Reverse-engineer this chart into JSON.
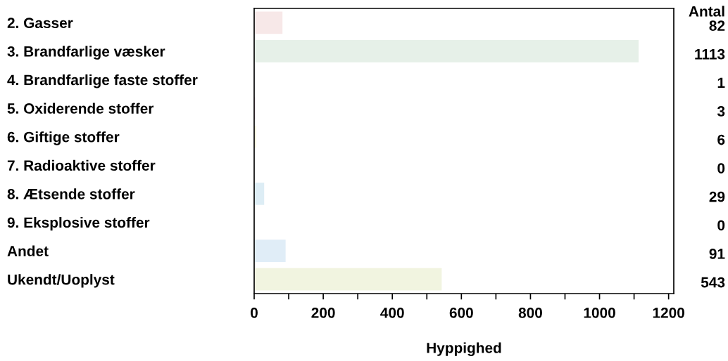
{
  "chart_data": {
    "type": "bar",
    "orientation": "horizontal",
    "xlabel": "Hyppighed",
    "categories": [
      "2. Gasser",
      "3. Brandfarlige væsker",
      "4. Brandfarlige faste stoffer",
      "5. Oxiderende stoffer",
      "6. Giftige stoffer",
      "7. Radioaktive stoffer",
      "8. Ætsende stoffer",
      "9. Eksplosive stoffer",
      "Andet",
      "Ukendt/Uoplyst"
    ],
    "values": [
      82,
      1113,
      1,
      3,
      6,
      0,
      29,
      0,
      91,
      543
    ],
    "colors": [
      "#f7e8e8",
      "#e6f0e8",
      "#e8e0f0",
      "#f5c6d8",
      "#fdf3dc",
      "#eeeeee",
      "#ddedf5",
      "#f0e0e0",
      "#e0edf7",
      "#f1f4e0"
    ],
    "data_labels": true,
    "annotations": [
      "Antal"
    ],
    "xlim": [
      0,
      1215
    ],
    "xticks": [
      0,
      {
        "value": 100,
        "label": null
      },
      200,
      {
        "value": 300,
        "label": null
      },
      400,
      {
        "value": 500,
        "label": null
      },
      600,
      {
        "value": 700,
        "label": null
      },
      800,
      {
        "value": 900,
        "label": null
      },
      1000,
      {
        "value": 1100,
        "label": null
      },
      1200
    ]
  }
}
